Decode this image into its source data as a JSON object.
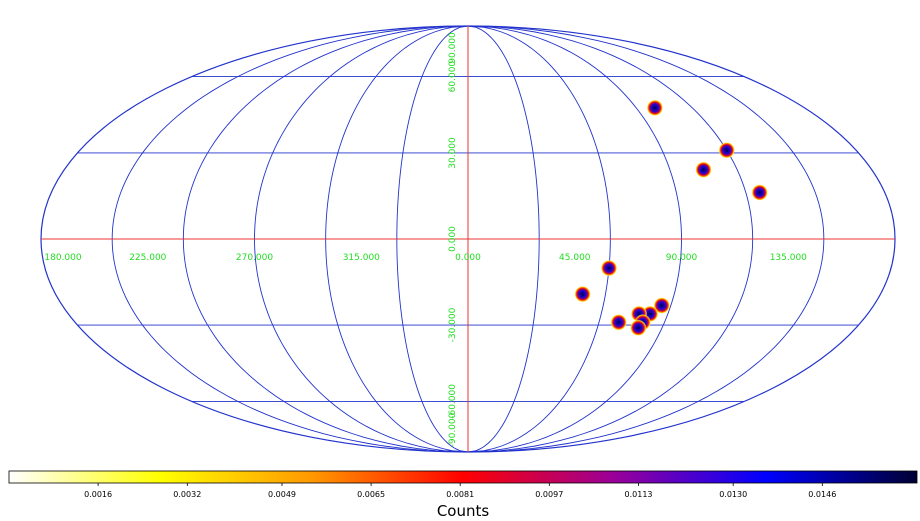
{
  "chart_data": {
    "type": "scatter",
    "projection": "mollweide",
    "grid": true,
    "lon_labels": [
      "180.000",
      "135.000",
      "90.000",
      "45.000",
      "0.000",
      "315.000",
      "270.000",
      "225.000"
    ],
    "lat_labels": [
      "90.000",
      "60.000",
      "30.000",
      "0.000",
      "-30.000",
      "-60.000",
      "-90.000"
    ],
    "points": [
      {
        "lon": 100,
        "lat": 47
      },
      {
        "lon": 120,
        "lat": 31
      },
      {
        "lon": 105,
        "lat": 24
      },
      {
        "lon": 126,
        "lat": 16
      },
      {
        "lon": 60,
        "lat": -10
      },
      {
        "lon": 50,
        "lat": -19
      },
      {
        "lon": 86,
        "lat": -23
      },
      {
        "lon": 82,
        "lat": -26
      },
      {
        "lon": 77,
        "lat": -26
      },
      {
        "lon": 80,
        "lat": -29
      },
      {
        "lon": 69,
        "lat": -29
      },
      {
        "lon": 79,
        "lat": -31
      }
    ],
    "colorbar": {
      "label": "Counts",
      "ticks": [
        "0.0016",
        "0.0032",
        "0.0049",
        "0.0065",
        "0.0081",
        "0.0097",
        "0.0113",
        "0.0130",
        "0.0146"
      ],
      "tick_values": [
        0.0016,
        0.0032,
        0.0049,
        0.0065,
        0.0081,
        0.0097,
        0.0113,
        0.013,
        0.0146
      ],
      "range": [
        0,
        0.0163
      ],
      "colors": [
        "#ffffff",
        "#ffff00",
        "#ff9900",
        "#ff0000",
        "#990099",
        "#0000ff",
        "#000033"
      ]
    },
    "colors": {
      "grid": "#2233cc",
      "axes": "#ee3333",
      "labels": "#22dd22"
    }
  }
}
